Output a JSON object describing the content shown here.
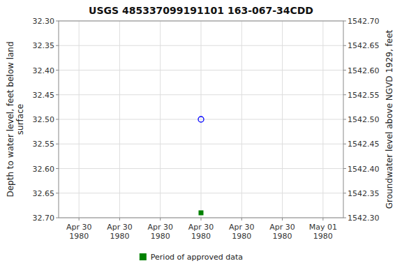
{
  "chart_data": {
    "type": "scatter",
    "title": "USGS 485337099191101 163-067-34CDD",
    "ylabel": "Depth to water level, feet below land\nsurface",
    "y2label": "Groundwater level above NGVD 1929, feet",
    "categories": [
      "Apr 30\n1980",
      "Apr 30\n1980",
      "Apr 30\n1980",
      "Apr 30\n1980",
      "Apr 30\n1980",
      "Apr 30\n1980",
      "May 01\n1980"
    ],
    "series": [
      {
        "color": "blue",
        "marker": "open-circle",
        "values": [
          null,
          null,
          null,
          32.5,
          null,
          null,
          null
        ]
      },
      {
        "name": "Period of approved data",
        "color": "#008000",
        "marker": "square",
        "values": [
          null,
          null,
          null,
          32.69,
          null,
          null,
          null
        ]
      }
    ],
    "ylim": [
      32.7,
      32.3
    ],
    "yticks": [
      {
        "value": 32.3,
        "label": "32.30"
      },
      32.35,
      {
        "value": 32.4,
        "label": "32.40"
      },
      32.45,
      {
        "value": 32.5,
        "label": "32.50"
      },
      32.55,
      {
        "value": 32.6,
        "label": "32.60"
      },
      32.65,
      {
        "value": 32.7,
        "label": "32.70"
      }
    ],
    "y2lim": [
      1542.3,
      1542.7
    ],
    "y2ticks": [
      {
        "value": 1542.3,
        "label": "1542.30"
      },
      1542.35,
      {
        "value": 1542.4,
        "label": "1542.40"
      },
      1542.45,
      {
        "value": 1542.5,
        "label": "1542.50"
      },
      1542.55,
      {
        "value": 1542.6,
        "label": "1542.60"
      },
      1542.65,
      {
        "value": 1542.7,
        "label": "1542.70"
      }
    ],
    "grid": true,
    "legend": "bottom"
  }
}
